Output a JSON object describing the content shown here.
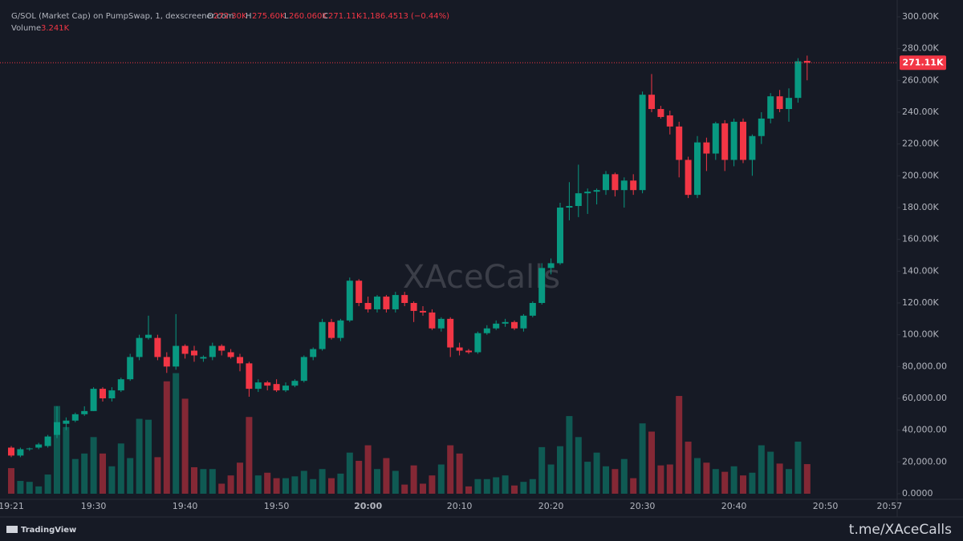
{
  "header": {
    "symbol": "G/SOL (Market Cap) on PumpSwap, 1, dexscreener.com",
    "o_label": "O",
    "o": "272.30K",
    "h_label": "H",
    "h": "275.60K",
    "l_label": "L",
    "l": "260.060K",
    "c_label": "C",
    "c": "271.11K",
    "change": "-1,186.4513 (−0.44%)",
    "volume_label": "Volume",
    "volume": "3.241K"
  },
  "watermark": "XAceCalls",
  "footer": {
    "brand": "TradingView",
    "link": "t.me/XAceCalls"
  },
  "chart_data": {
    "type": "candlestick",
    "up_color": "#089981",
    "down_color": "#f23645",
    "x": [
      "19:21",
      "19:22",
      "19:23",
      "19:24",
      "19:25",
      "19:26",
      "19:27",
      "19:28",
      "19:29",
      "19:30",
      "19:31",
      "19:32",
      "19:33",
      "19:34",
      "19:35",
      "19:36",
      "19:37",
      "19:38",
      "19:39",
      "19:40",
      "19:41",
      "19:42",
      "19:43",
      "19:44",
      "19:45",
      "19:46",
      "19:47",
      "19:48",
      "19:49",
      "19:50",
      "19:51",
      "19:52",
      "19:53",
      "19:54",
      "19:55",
      "19:56",
      "19:57",
      "19:58",
      "19:59",
      "20:00",
      "20:01",
      "20:02",
      "20:03",
      "20:04",
      "20:05",
      "20:06",
      "20:07",
      "20:08",
      "20:09",
      "20:10",
      "20:11",
      "20:12",
      "20:13",
      "20:14",
      "20:15",
      "20:16",
      "20:17",
      "20:18",
      "20:19",
      "20:20",
      "20:21",
      "20:22",
      "20:23",
      "20:24",
      "20:25",
      "20:26",
      "20:27",
      "20:28",
      "20:29",
      "20:30",
      "20:31",
      "20:32",
      "20:33",
      "20:34",
      "20:35",
      "20:36",
      "20:37",
      "20:38",
      "20:39",
      "20:40",
      "20:41",
      "20:42",
      "20:43",
      "20:44",
      "20:45",
      "20:46",
      "20:47",
      "20:48"
    ],
    "open": [
      29000,
      24000,
      28000,
      29000,
      30000,
      37000,
      44000,
      46000,
      50000,
      52000,
      66000,
      60000,
      65000,
      72000,
      86000,
      98000,
      98000,
      86000,
      80000,
      93000,
      90000,
      85000,
      86000,
      93000,
      89000,
      86000,
      82000,
      66000,
      70000,
      69000,
      65000,
      68000,
      71000,
      86000,
      91000,
      108000,
      98000,
      109000,
      134000,
      120000,
      116000,
      124000,
      116000,
      125000,
      120000,
      115000,
      114000,
      104000,
      110000,
      92000,
      90000,
      89000,
      101000,
      104000,
      107000,
      108000,
      104000,
      112000,
      120000,
      142000,
      145000,
      180000,
      181000,
      189000,
      190000,
      191000,
      201000,
      191000,
      197000,
      191000,
      251000,
      242000,
      238000,
      231000,
      210000,
      188000,
      221000,
      214000,
      233000,
      210000,
      234000,
      210000,
      225000,
      236000,
      250000,
      242000,
      249000,
      272300
    ],
    "high": [
      30000,
      29000,
      29000,
      32000,
      37000,
      55000,
      48000,
      51000,
      55000,
      67000,
      67000,
      67000,
      73000,
      88000,
      100000,
      112000,
      100000,
      89000,
      113000,
      94000,
      93000,
      87000,
      95000,
      94000,
      91000,
      88000,
      83000,
      72000,
      71000,
      72000,
      70000,
      72000,
      87000,
      92000,
      110000,
      110000,
      110000,
      136000,
      135000,
      124000,
      125000,
      125000,
      127000,
      127000,
      121000,
      118000,
      116000,
      111000,
      111000,
      95000,
      91000,
      102000,
      106000,
      109000,
      110000,
      109000,
      113000,
      121000,
      145000,
      148000,
      183000,
      196000,
      207000,
      192000,
      192000,
      203000,
      202000,
      199000,
      201000,
      253000,
      264000,
      244000,
      241000,
      234000,
      212000,
      225000,
      224000,
      234000,
      235000,
      236000,
      236000,
      226000,
      240000,
      252000,
      254000,
      255000,
      274000,
      275600
    ],
    "low": [
      23000,
      23000,
      27000,
      28000,
      29000,
      35000,
      40000,
      45000,
      49000,
      52000,
      58000,
      58000,
      64000,
      71000,
      84000,
      97000,
      84000,
      76000,
      78000,
      85000,
      83000,
      83000,
      84000,
      87000,
      85000,
      77000,
      61000,
      64000,
      65000,
      64000,
      64000,
      67000,
      70000,
      84000,
      90000,
      97000,
      96000,
      108000,
      118000,
      114000,
      114000,
      114000,
      114000,
      118000,
      108000,
      112000,
      103000,
      102000,
      86000,
      87000,
      88000,
      88000,
      100000,
      103000,
      105000,
      103000,
      102000,
      111000,
      119000,
      138000,
      144000,
      172000,
      174000,
      176000,
      182000,
      188000,
      187000,
      180000,
      188000,
      189000,
      240000,
      236000,
      226000,
      199000,
      186000,
      186000,
      203000,
      210000,
      203000,
      206000,
      208000,
      200000,
      220000,
      233000,
      240000,
      234000,
      246000,
      260060
    ],
    "close": [
      24000,
      28000,
      28500,
      31000,
      36000,
      45000,
      46000,
      50000,
      52000,
      66000,
      60000,
      65000,
      72000,
      86000,
      98000,
      100000,
      86000,
      80000,
      93000,
      88000,
      87000,
      86000,
      93000,
      90000,
      86000,
      82000,
      66000,
      70000,
      68000,
      65000,
      68000,
      71000,
      86000,
      91000,
      108000,
      98000,
      109000,
      134000,
      120000,
      116000,
      124000,
      116000,
      125000,
      120000,
      115000,
      114000,
      104000,
      110000,
      92000,
      90000,
      89000,
      101000,
      104000,
      107000,
      108000,
      104000,
      112000,
      120000,
      142000,
      145000,
      180000,
      181000,
      189000,
      190000,
      191000,
      201000,
      191000,
      197000,
      191000,
      251000,
      242000,
      237000,
      231000,
      210000,
      188000,
      221000,
      214000,
      233000,
      210000,
      234000,
      210000,
      225000,
      236000,
      250000,
      242000,
      249000,
      272000,
      271110
    ],
    "volume": [
      2800,
      1400,
      1300,
      800,
      2100,
      9600,
      7300,
      3800,
      4400,
      6200,
      4400,
      3000,
      5500,
      3900,
      8200,
      8100,
      4000,
      12300,
      13200,
      10400,
      2900,
      2700,
      2700,
      1100,
      2000,
      3400,
      8400,
      2000,
      2300,
      1700,
      1700,
      1900,
      2500,
      1600,
      2700,
      1700,
      2200,
      4500,
      3600,
      5300,
      2700,
      3900,
      2500,
      1000,
      3100,
      1100,
      2000,
      3200,
      5300,
      4400,
      800,
      1600,
      1600,
      1800,
      2000,
      900,
      1300,
      1600,
      5100,
      3200,
      5200,
      8500,
      6200,
      3500,
      4500,
      3000,
      2700,
      3800,
      1700,
      7700,
      6800,
      3100,
      3200,
      10700,
      5700,
      3900,
      3400,
      2700,
      2400,
      3000,
      2000,
      2300,
      5300,
      4600,
      3300,
      2700,
      5700,
      3241
    ],
    "volume_ylim": [
      0,
      52200
    ],
    "last_price": {
      "value": 271110,
      "label": "271.11K"
    },
    "ylim": [
      0,
      300000
    ],
    "yticks": [
      {
        "value": 0,
        "label": "0.0000"
      },
      {
        "value": 20000,
        "label": "20,000.00"
      },
      {
        "value": 40000,
        "label": "40,000.00"
      },
      {
        "value": 60000,
        "label": "60,000.00"
      },
      {
        "value": 80000,
        "label": "80,000.00"
      },
      {
        "value": 100000,
        "label": "100.00K"
      },
      {
        "value": 120000,
        "label": "120.00K"
      },
      {
        "value": 140000,
        "label": "140.00K"
      },
      {
        "value": 160000,
        "label": "160.00K"
      },
      {
        "value": 180000,
        "label": "180.00K"
      },
      {
        "value": 200000,
        "label": "200.00K"
      },
      {
        "value": 220000,
        "label": "220.00K"
      },
      {
        "value": 240000,
        "label": "240.00K"
      },
      {
        "value": 260000,
        "label": "260.00K"
      },
      {
        "value": 280000,
        "label": "280.00K"
      },
      {
        "value": 300000,
        "label": "300.00K"
      }
    ],
    "xticks": [
      "19:21",
      "19:30",
      "19:40",
      "19:50",
      "20:00",
      "20:10",
      "20:20",
      "20:30",
      "20:40",
      "20:50",
      "20:57"
    ]
  }
}
